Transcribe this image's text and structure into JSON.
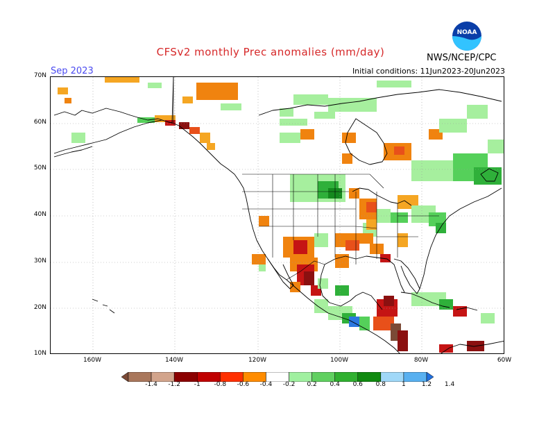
{
  "header": {
    "title": "CFSv2 monthly Prec anomalies (mm/day)",
    "org": "NWS/NCEP/CPC",
    "logo_text": "NOAA",
    "month": "Sep 2023",
    "initial_conditions": "Initial conditions: 11Jun2023-20Jun2023"
  },
  "axes": {
    "y_ticks": [
      "70N",
      "60N",
      "50N",
      "40N",
      "30N",
      "20N",
      "10N"
    ],
    "x_ticks": [
      "160W",
      "140W",
      "120W",
      "100W",
      "80W",
      "60W"
    ]
  },
  "colorbar": {
    "labels": [
      "-1.4",
      "-1.2",
      "-1",
      "-0.8",
      "-0.6",
      "-0.4",
      "-0.2",
      "0.2",
      "0.4",
      "0.6",
      "0.8",
      "1",
      "1.2",
      "1.4"
    ],
    "colors": [
      "#7b4a36",
      "#a9775c",
      "#d2a48c",
      "#8b0000",
      "#c00000",
      "#ff3000",
      "#ff8c00",
      "#ffffff",
      "#a0f0a0",
      "#60d060",
      "#30b030",
      "#108a10",
      "#a0d8f8",
      "#58b0f0",
      "#2070e0"
    ]
  },
  "map_colors": {
    "light_orange": "#f5a623",
    "orange": "#f0830f",
    "red_orange": "#e8501a",
    "red": "#c51414",
    "dark_red": "#8b1010",
    "brown": "#7b4a36",
    "light_green": "#a6ef9e",
    "green": "#55d05a",
    "mid_green": "#2fb03a",
    "dark_green": "#158a1e",
    "blue": "#2a78e0"
  }
}
